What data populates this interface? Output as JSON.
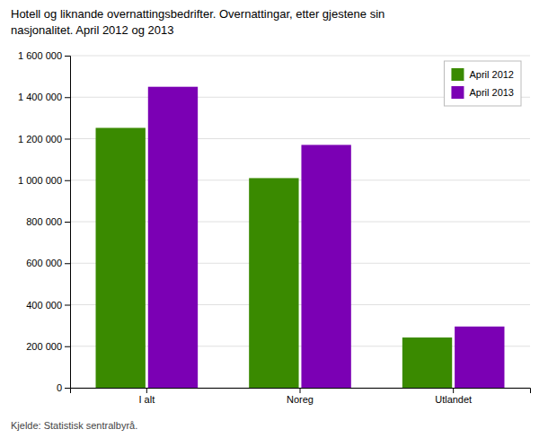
{
  "chart_data": {
    "type": "bar",
    "title": "Hotell og liknande overnattingsbedrifter. Overnattingar, etter gjestene sin\nnasjonalitet. April 2012 og 2013",
    "categories": [
      "I alt",
      "Noreg",
      "Utlandet"
    ],
    "series": [
      {
        "name": "April 2012",
        "values": [
          1252000,
          1010000,
          242000
        ],
        "color": "#3a8a00"
      },
      {
        "name": "April 2013",
        "values": [
          1450000,
          1170000,
          295000
        ],
        "color": "#7b00b4"
      }
    ],
    "ylim": [
      0,
      1600000
    ],
    "yticks": [
      0,
      {
        "value": 200000,
        "label": "200 000"
      },
      {
        "value": 400000,
        "label": "400 000"
      },
      {
        "value": 600000,
        "label": "600 000"
      },
      {
        "value": 800000,
        "label": "800 000"
      },
      {
        "value": 1000000,
        "label": "1 000 000"
      },
      {
        "value": 1200000,
        "label": "1 200 000"
      },
      {
        "value": 1400000,
        "label": "1 400 000"
      },
      {
        "value": 1600000,
        "label": "1 600 000"
      }
    ],
    "grid": true,
    "legend": "upper right",
    "annotations": [
      "Kjelde: Statistisk sentralbyrå."
    ]
  }
}
